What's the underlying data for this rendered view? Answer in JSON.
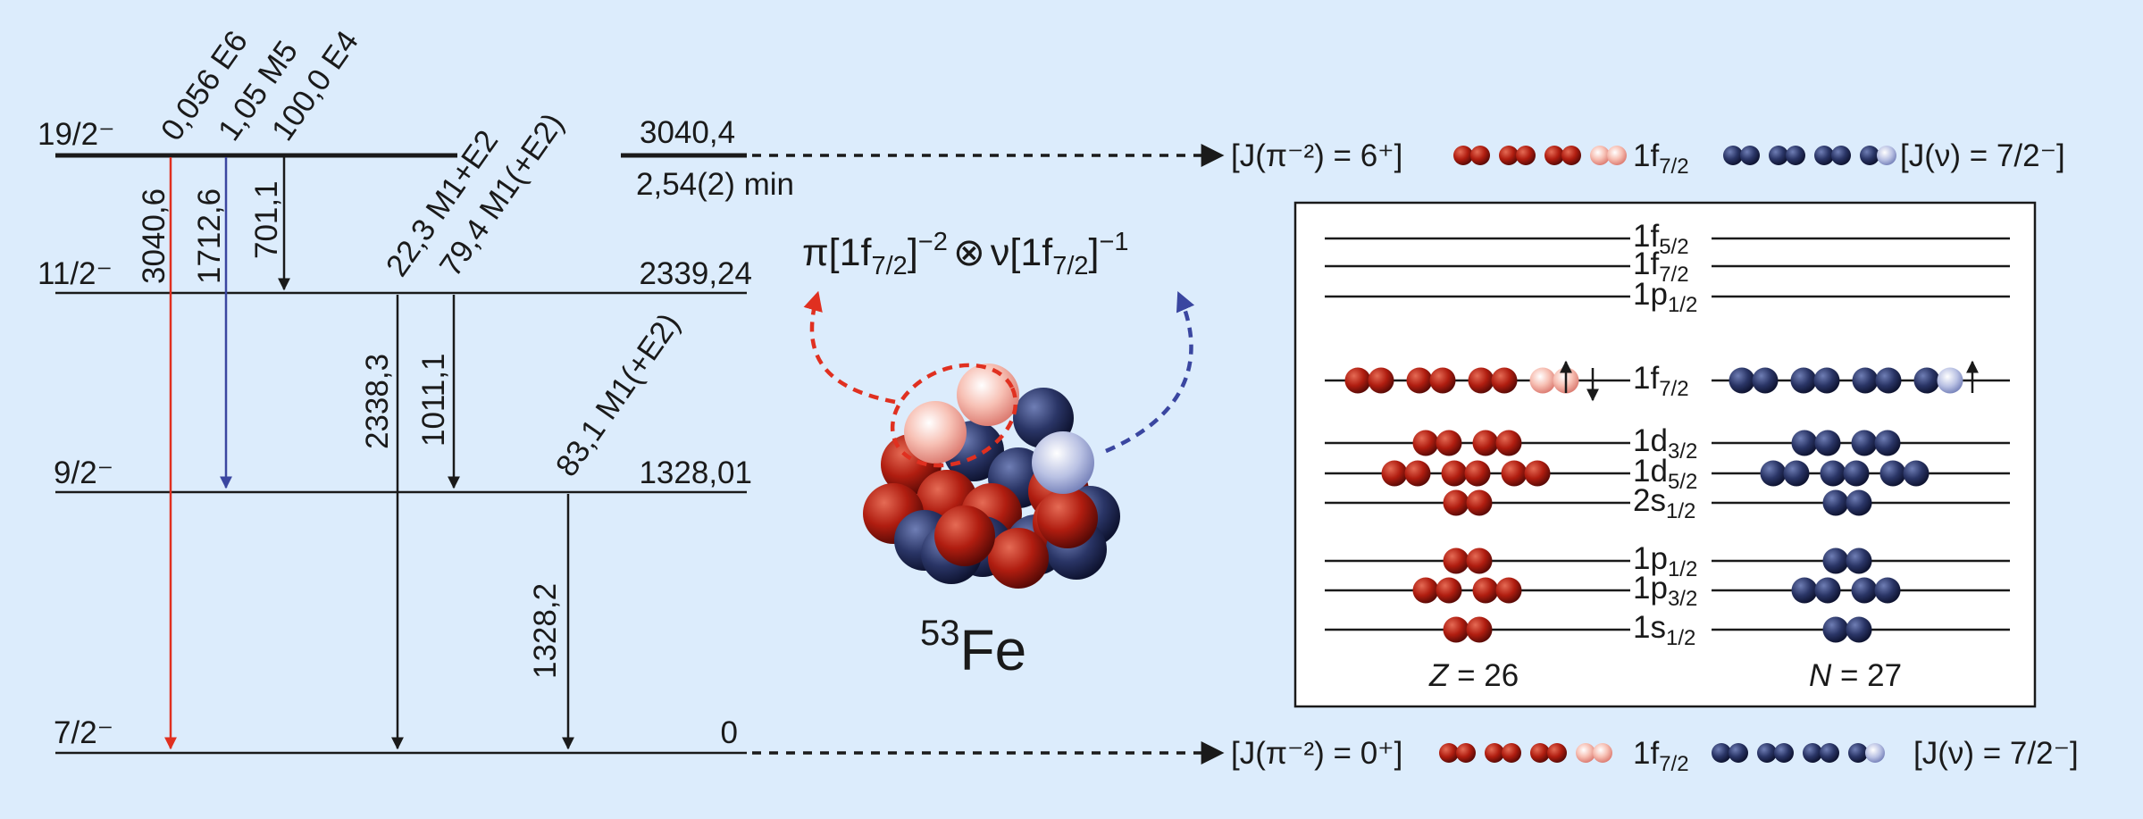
{
  "levels": [
    {
      "spin": "19/2⁻",
      "energy": "3040,4",
      "halflife": "2,54(2) min"
    },
    {
      "spin": "11/2⁻",
      "energy": "2339,24"
    },
    {
      "spin": "9/2⁻",
      "energy": "1328,01"
    },
    {
      "spin": "7/2⁻",
      "energy": "0"
    }
  ],
  "branches": {
    "e6": "0,056 E6",
    "m5": "1,05 M5",
    "e4": "100,0 E4",
    "m1e2_a": "22,3 M1+E2",
    "m1e2_b": "79,4 M1(+E2)",
    "m1e2_c": "83,1 M1(+E2)"
  },
  "gammas": {
    "g3040": "3040,6",
    "g1712": "1712,6",
    "g701": "701,1",
    "g2338": "2338,3",
    "g1011": "1011,1",
    "g1328": "1328,2"
  },
  "config": {
    "formula_pi": "π[1f",
    "formula_pi_sub": "7/2",
    "formula_pi_close": "]",
    "formula_pi_exp": "−2",
    "otimes": "⊗",
    "formula_nu": "ν[1f",
    "formula_nu_sub": "7/2",
    "formula_nu_close": "]",
    "formula_nu_exp": "−1"
  },
  "nucleus": {
    "mass": "53",
    "element": "Fe"
  },
  "coupling_top": {
    "proton": "[J(π⁻²) = 6⁺]",
    "orbital": "1f",
    "orbital_sub": "7/2",
    "neutron": "[J(ν) = 7/2⁻]"
  },
  "coupling_bottom": {
    "proton": "[J(π⁻²) = 0⁺]",
    "orbital": "1f",
    "orbital_sub": "7/2",
    "neutron": "[J(ν) = 7/2⁻]"
  },
  "shell_model": {
    "shells": [
      {
        "name": "1f",
        "sub": "5/2"
      },
      {
        "name": "1f",
        "sub": "7/2"
      },
      {
        "name": "1p",
        "sub": "1/2"
      },
      {
        "name": "1f",
        "sub": "7/2"
      },
      {
        "name": "1d",
        "sub": "3/2"
      },
      {
        "name": "1d",
        "sub": "5/2"
      },
      {
        "name": "2s",
        "sub": "1/2"
      },
      {
        "name": "1p",
        "sub": "1/2"
      },
      {
        "name": "1p",
        "sub": "3/2"
      },
      {
        "name": "1s",
        "sub": "1/2"
      }
    ],
    "z_label": "Z",
    "z_value": " = 26",
    "n_label": "N",
    "n_value": " = 27"
  },
  "colors": {
    "proton": "#b01d10",
    "proton_hole": "#f7b5a9",
    "neutron": "#2a3566",
    "neutron_hole": "#aab3d9",
    "red_line": "#e03020",
    "blue_line": "#3a46a0",
    "background": "#dcecfc"
  }
}
